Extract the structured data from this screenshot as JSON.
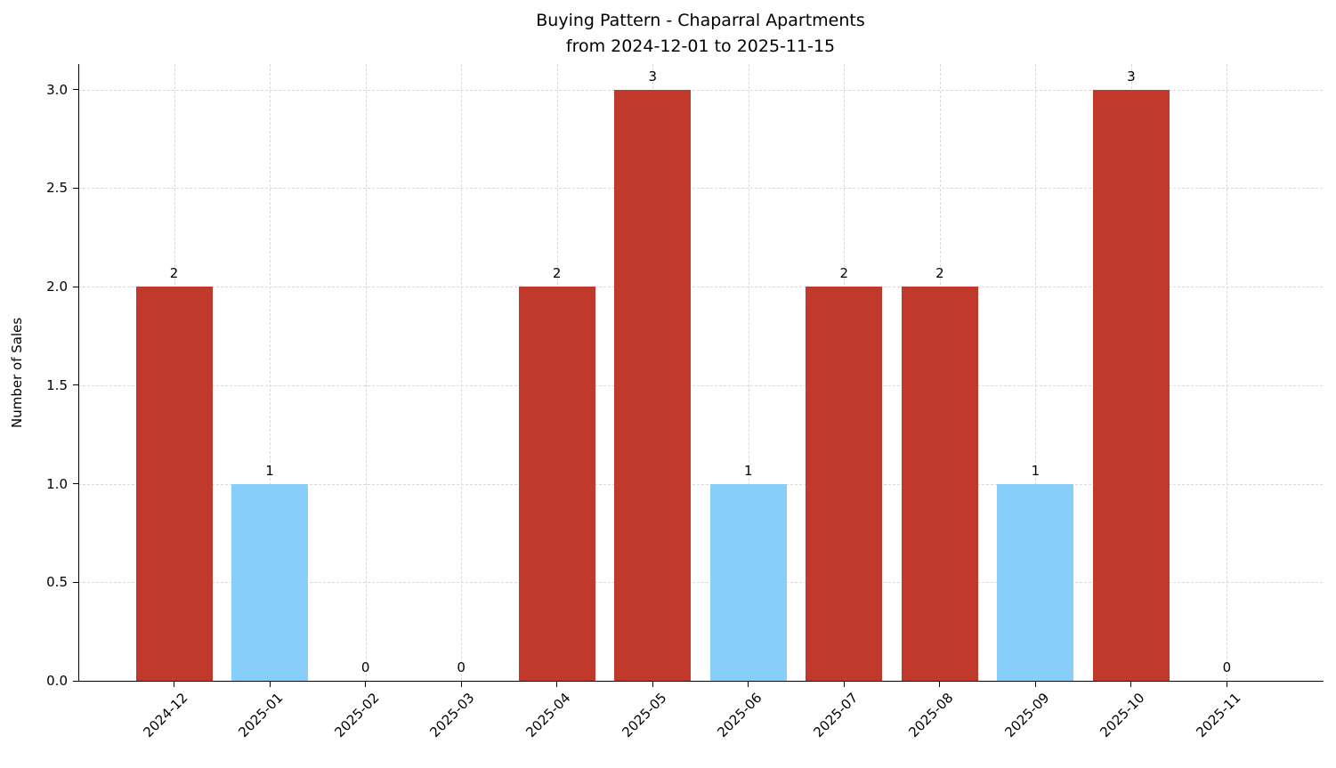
{
  "chart_data": {
    "type": "bar",
    "title": "Buying Pattern - Chaparral Apartments",
    "subtitle": "from 2024-12-01 to 2025-11-15",
    "ylabel": "Number of Sales",
    "categories": [
      "2024-12",
      "2025-01",
      "2025-02",
      "2025-03",
      "2025-04",
      "2025-05",
      "2025-06",
      "2025-07",
      "2025-08",
      "2025-09",
      "2025-10",
      "2025-11"
    ],
    "values": [
      2,
      1,
      0,
      0,
      2,
      3,
      1,
      2,
      2,
      1,
      3,
      0
    ],
    "bar_colors": [
      "#c0392b",
      "#87cefa",
      "#c0392b",
      "#c0392b",
      "#c0392b",
      "#c0392b",
      "#87cefa",
      "#c0392b",
      "#c0392b",
      "#87cefa",
      "#c0392b",
      "#c0392b"
    ],
    "yticks": [
      0.0,
      0.5,
      1.0,
      1.5,
      2.0,
      2.5,
      3.0
    ],
    "ylim": [
      0,
      3.13
    ],
    "grid": "dashed-both-axes",
    "legend": "none",
    "colors": {
      "bar_red": "#c0392b",
      "bar_blue": "#87cefa",
      "grid": "#d9d9d9",
      "axis": "#000000",
      "background": "#ffffff"
    }
  }
}
